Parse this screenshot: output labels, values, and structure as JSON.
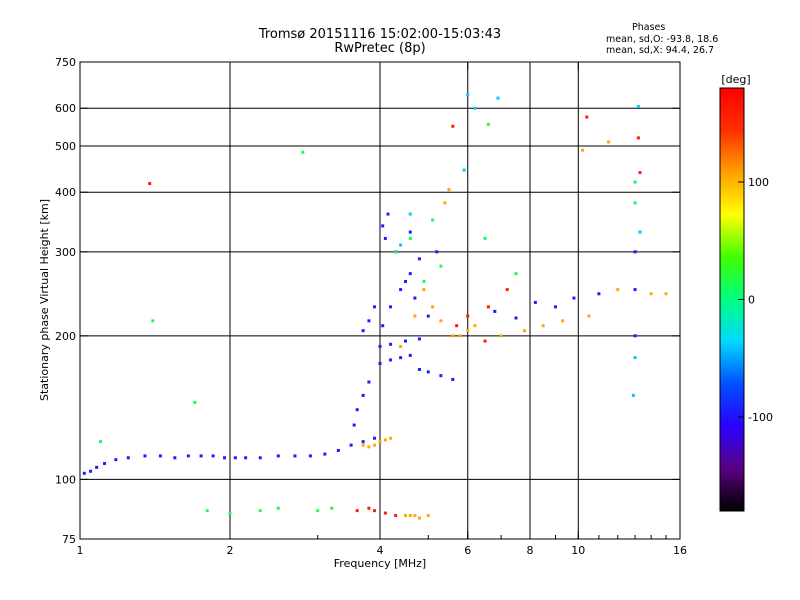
{
  "title_line1": "Tromsø 20151116 15:02:00-15:03:43",
  "title_line2": "RwPretec (8p)",
  "phases": {
    "title": "Phases",
    "o_line": "mean, sd,O: -93.8, 18.6",
    "x_line": "mean, sd,X:  94.4, 26.7"
  },
  "colorbar": {
    "label": "[deg]",
    "ticks": [
      {
        "value": 100,
        "label": "100"
      },
      {
        "value": 0,
        "label": "0"
      },
      {
        "value": -100,
        "label": "-100"
      }
    ],
    "range": [
      -180,
      180
    ],
    "colors": [
      "#000000",
      "#5a0080",
      "#2a00ff",
      "#0050ff",
      "#00d8ff",
      "#00ff80",
      "#40ff00",
      "#ffff00",
      "#ffa000",
      "#ff3000",
      "#ff0000"
    ]
  },
  "chart_data": {
    "type": "scatter",
    "xlabel": "Frequency [MHz]",
    "ylabel": "Stationary phase Virtual Height [km]",
    "xscale": "log",
    "yscale": "log",
    "xlim": [
      1,
      16
    ],
    "ylim": [
      75,
      750
    ],
    "xticks": [
      1,
      2,
      4,
      6,
      8,
      10,
      16
    ],
    "yticks": [
      75,
      100,
      200,
      300,
      400,
      500,
      600,
      750
    ],
    "x_gridlines": [
      2,
      4,
      6,
      8,
      10
    ],
    "y_gridlines": [
      100,
      200,
      300,
      400,
      500,
      600
    ],
    "color_dimension": "phase [deg]",
    "series": [
      {
        "color_by_phase": -95,
        "points": [
          [
            1.02,
            103
          ],
          [
            1.05,
            104
          ],
          [
            1.08,
            106
          ],
          [
            1.12,
            108
          ],
          [
            1.18,
            110
          ],
          [
            1.25,
            111
          ],
          [
            1.35,
            112
          ],
          [
            1.45,
            112
          ],
          [
            1.55,
            111
          ],
          [
            1.65,
            112
          ],
          [
            1.75,
            112
          ],
          [
            1.85,
            112
          ],
          [
            1.95,
            111
          ],
          [
            2.05,
            111
          ],
          [
            2.15,
            111
          ],
          [
            2.3,
            111
          ],
          [
            2.5,
            112
          ],
          [
            2.7,
            112
          ],
          [
            2.9,
            112
          ],
          [
            3.1,
            113
          ],
          [
            3.3,
            115
          ],
          [
            3.5,
            118
          ],
          [
            3.7,
            120
          ],
          [
            3.9,
            122
          ],
          [
            3.55,
            130
          ],
          [
            3.6,
            140
          ],
          [
            3.7,
            150
          ],
          [
            3.8,
            160
          ],
          [
            4.0,
            175
          ],
          [
            4.2,
            178
          ],
          [
            4.4,
            180
          ],
          [
            4.6,
            182
          ],
          [
            4.0,
            190
          ],
          [
            4.2,
            192
          ],
          [
            4.5,
            195
          ],
          [
            4.8,
            197
          ],
          [
            4.05,
            210
          ],
          [
            4.2,
            230
          ],
          [
            4.4,
            250
          ],
          [
            4.6,
            270
          ],
          [
            4.8,
            290
          ],
          [
            4.1,
            320
          ],
          [
            4.3,
            300
          ],
          [
            4.5,
            260
          ],
          [
            4.7,
            240
          ],
          [
            5.0,
            220
          ],
          [
            4.05,
            340
          ],
          [
            4.15,
            360
          ],
          [
            4.6,
            330
          ],
          [
            5.2,
            300
          ],
          [
            4.8,
            170
          ],
          [
            5.0,
            168
          ],
          [
            5.3,
            165
          ],
          [
            5.6,
            162
          ],
          [
            3.9,
            230
          ],
          [
            3.8,
            215
          ],
          [
            3.7,
            205
          ],
          [
            6.8,
            225
          ],
          [
            7.5,
            218
          ],
          [
            8.2,
            235
          ],
          [
            9.0,
            230
          ],
          [
            9.8,
            240
          ],
          [
            11.0,
            245
          ],
          [
            13.0,
            200
          ],
          [
            13.0,
            250
          ],
          [
            13.0,
            300
          ]
        ]
      },
      {
        "color_by_phase": 105,
        "points": [
          [
            3.7,
            118
          ],
          [
            3.8,
            117
          ],
          [
            3.9,
            118
          ],
          [
            4.0,
            120
          ],
          [
            4.1,
            121
          ],
          [
            4.2,
            122
          ],
          [
            4.5,
            84
          ],
          [
            4.6,
            84
          ],
          [
            4.7,
            84
          ],
          [
            4.8,
            83
          ],
          [
            5.0,
            84
          ],
          [
            5.6,
            200
          ],
          [
            5.8,
            200
          ],
          [
            6.0,
            205
          ],
          [
            5.3,
            215
          ],
          [
            5.1,
            230
          ],
          [
            4.9,
            250
          ],
          [
            4.7,
            220
          ],
          [
            4.4,
            190
          ],
          [
            6.2,
            210
          ],
          [
            7.0,
            200
          ],
          [
            7.8,
            205
          ],
          [
            8.5,
            210
          ],
          [
            9.3,
            215
          ],
          [
            10.5,
            220
          ],
          [
            12.0,
            250
          ],
          [
            14.0,
            245
          ],
          [
            15.0,
            245
          ],
          [
            5.5,
            405
          ],
          [
            5.4,
            380
          ],
          [
            10.2,
            490
          ],
          [
            11.5,
            510
          ]
        ]
      },
      {
        "color_by_phase": 160,
        "points": [
          [
            4.1,
            85
          ],
          [
            4.3,
            84
          ],
          [
            3.9,
            86
          ],
          [
            5.7,
            210
          ],
          [
            6.0,
            220
          ],
          [
            6.5,
            195
          ],
          [
            6.6,
            230
          ],
          [
            7.2,
            250
          ],
          [
            10.4,
            575
          ],
          [
            13.2,
            520
          ],
          [
            13.3,
            440
          ],
          [
            1.38,
            417
          ],
          [
            5.6,
            550
          ],
          [
            3.6,
            86
          ],
          [
            3.8,
            87
          ]
        ]
      },
      {
        "color_by_phase": 10,
        "points": [
          [
            1.8,
            86
          ],
          [
            2.0,
            85
          ],
          [
            2.3,
            86
          ],
          [
            2.5,
            87
          ],
          [
            3.0,
            86
          ],
          [
            3.2,
            87
          ],
          [
            4.3,
            300
          ],
          [
            4.6,
            320
          ],
          [
            4.9,
            260
          ],
          [
            5.1,
            350
          ],
          [
            5.3,
            280
          ],
          [
            6.5,
            320
          ],
          [
            7.5,
            270
          ],
          [
            13.0,
            420
          ],
          [
            13.0,
            380
          ],
          [
            1.4,
            215
          ],
          [
            1.7,
            145
          ],
          [
            2.8,
            485
          ],
          [
            1.1,
            120
          ],
          [
            6.6,
            555
          ]
        ]
      },
      {
        "color_by_phase": -40,
        "points": [
          [
            6.0,
            640
          ],
          [
            6.9,
            630
          ],
          [
            13.2,
            605
          ],
          [
            13.3,
            330
          ],
          [
            13.0,
            180
          ],
          [
            12.9,
            150
          ],
          [
            6.2,
            600
          ],
          [
            5.9,
            445
          ],
          [
            4.6,
            360
          ],
          [
            4.4,
            310
          ]
        ]
      }
    ]
  }
}
